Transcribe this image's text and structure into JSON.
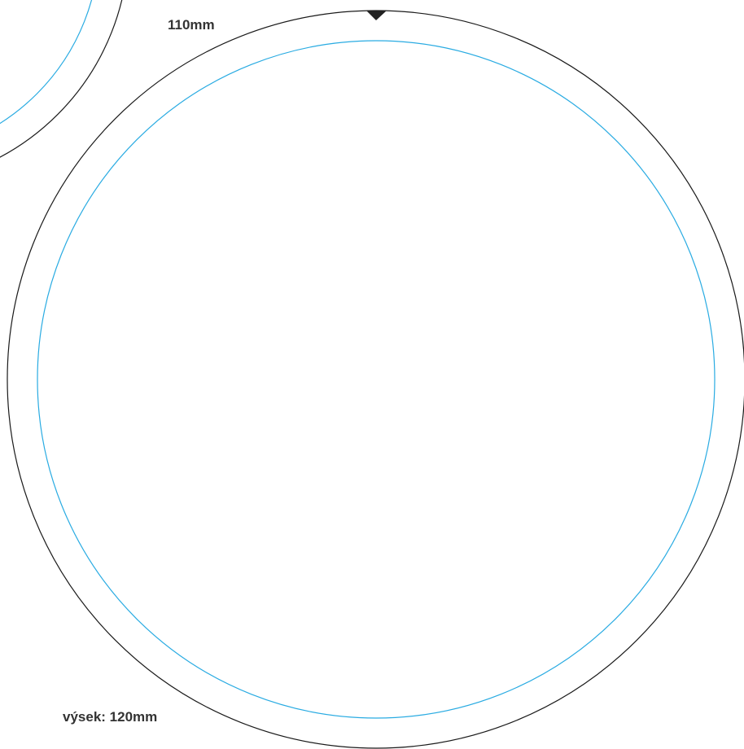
{
  "labels": {
    "inner_diameter": "110mm",
    "cut_diameter": "výsek: 120mm"
  },
  "colors": {
    "background": "#ffffff",
    "cut_line": "#1a1a1a",
    "safe_line": "#29abe2",
    "marker": "#222222",
    "label_text": "#333333"
  },
  "icons": {
    "registration_marker": "triangle-down-marker"
  }
}
